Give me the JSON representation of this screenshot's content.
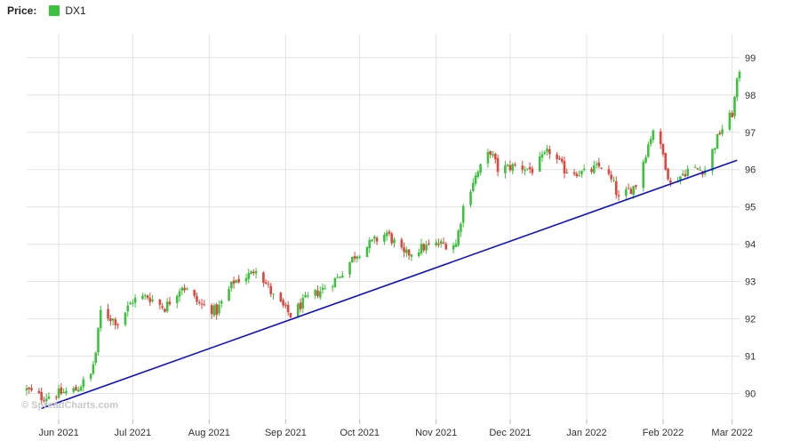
{
  "legend": {
    "label": "Price:",
    "series_name": "DX1",
    "swatch_color": "#3cc23c"
  },
  "watermark": "© SpreadCharts.com",
  "colors": {
    "up": "#3cc23c",
    "down": "#e0463c",
    "trendline": "#1010d0",
    "grid": "#e2e2e2"
  },
  "chart_data": {
    "type": "candlestick",
    "series": [
      {
        "name": "DX1"
      }
    ],
    "x_tick_labels": [
      "Jun 2021",
      "Jul 2021",
      "Aug 2021",
      "Sep 2021",
      "Oct 2021",
      "Nov 2021",
      "Dec 2021",
      "Jan 2022",
      "Feb 2022",
      "Mar 2022"
    ],
    "y_ticks": [
      90,
      91,
      92,
      93,
      94,
      95,
      96,
      97,
      98,
      99
    ],
    "ylim": [
      89.3,
      99.4
    ],
    "yaxis_side": "right",
    "grid": true,
    "x_start": "2021-05-19",
    "x_end": "2022-03-04",
    "trendline": {
      "start": [
        "2021-05-25",
        89.6
      ],
      "end": [
        "2022-03-03",
        96.25
      ]
    },
    "anchors": [
      [
        "2021-05-19",
        90.1
      ],
      [
        "2021-05-25",
        89.9
      ],
      [
        "2021-06-01",
        90.0
      ],
      [
        "2021-06-08",
        90.1
      ],
      [
        "2021-06-14",
        90.5
      ],
      [
        "2021-06-16",
        91.1
      ],
      [
        "2021-06-18",
        92.2
      ],
      [
        "2021-06-25",
        91.9
      ],
      [
        "2021-07-01",
        92.5
      ],
      [
        "2021-07-07",
        92.6
      ],
      [
        "2021-07-14",
        92.3
      ],
      [
        "2021-07-21",
        92.9
      ],
      [
        "2021-07-28",
        92.4
      ],
      [
        "2021-08-04",
        92.2
      ],
      [
        "2021-08-11",
        93.0
      ],
      [
        "2021-08-18",
        93.2
      ],
      [
        "2021-08-20",
        93.4
      ],
      [
        "2021-08-27",
        92.6
      ],
      [
        "2021-09-03",
        92.1
      ],
      [
        "2021-09-09",
        92.5
      ],
      [
        "2021-09-16",
        92.8
      ],
      [
        "2021-09-22",
        93.1
      ],
      [
        "2021-09-29",
        93.7
      ],
      [
        "2021-10-05",
        94.0
      ],
      [
        "2021-10-12",
        94.3
      ],
      [
        "2021-10-19",
        93.7
      ],
      [
        "2021-10-26",
        93.9
      ],
      [
        "2021-11-02",
        94.0
      ],
      [
        "2021-11-09",
        94.0
      ],
      [
        "2021-11-12",
        95.0
      ],
      [
        "2021-11-16",
        95.7
      ],
      [
        "2021-11-23",
        96.5
      ],
      [
        "2021-11-26",
        96.0
      ],
      [
        "2021-12-03",
        96.1
      ],
      [
        "2021-12-10",
        96.0
      ],
      [
        "2021-12-17",
        96.5
      ],
      [
        "2021-12-23",
        96.0
      ],
      [
        "2021-12-31",
        95.9
      ],
      [
        "2022-01-07",
        96.1
      ],
      [
        "2022-01-12",
        95.6
      ],
      [
        "2022-01-14",
        95.2
      ],
      [
        "2022-01-21",
        95.6
      ],
      [
        "2022-01-28",
        97.1
      ],
      [
        "2022-02-01",
        96.4
      ],
      [
        "2022-02-04",
        95.6
      ],
      [
        "2022-02-11",
        96.0
      ],
      [
        "2022-02-18",
        96.0
      ],
      [
        "2022-02-24",
        97.0
      ],
      [
        "2022-03-01",
        97.5
      ],
      [
        "2022-03-04",
        98.7
      ]
    ]
  }
}
